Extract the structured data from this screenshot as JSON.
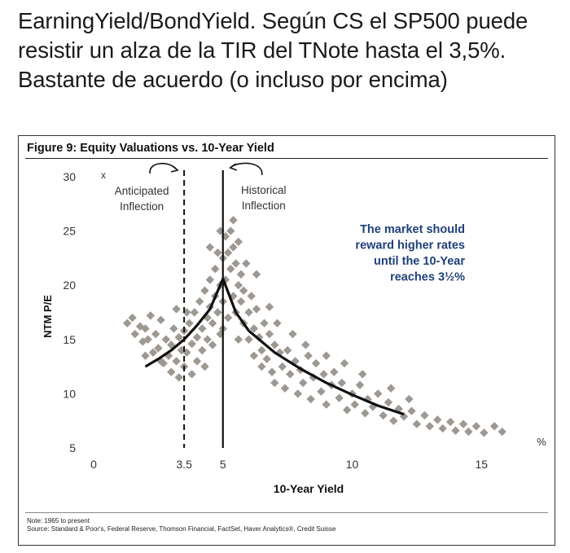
{
  "headline": "EarningYield/BondYield. Según CS el SP500 puede resistir un alza de la TIR del TNote hasta el 3,5%. Bastante de acuerdo (o incluso por encima)",
  "figure": {
    "title": "Figure 9: Equity Valuations vs. 10-Year Yield",
    "note": "Note: 1965 to present",
    "source": "Source: Standard & Poor's, Federal Reserve, Thomson Financial, FactSet, Haver Analytics®, Credit Suisse"
  },
  "chart_data": {
    "type": "scatter",
    "xlabel": "10-Year Yield",
    "ylabel": "NTM P/E",
    "x_unit": "%",
    "y_unit": "x",
    "xlim": [
      0,
      16
    ],
    "ylim": [
      5,
      30
    ],
    "x_ticks": [
      "0",
      "3.5",
      "5",
      "10",
      "15"
    ],
    "x_tick_values": [
      0,
      3.5,
      5,
      10,
      15
    ],
    "y_ticks": [
      "5",
      "10",
      "15",
      "20",
      "25",
      "30"
    ],
    "y_tick_values": [
      5,
      10,
      15,
      20,
      25,
      30
    ],
    "grid": false,
    "point_color": "#9e9893",
    "curve_color": "#111111",
    "vlines": [
      {
        "x": 3.5,
        "style": "dashed",
        "label": "Anticipated\nInflection"
      },
      {
        "x": 5,
        "style": "solid",
        "label": "Historical\nInflection"
      }
    ],
    "annotation": "The market should\nreward higher rates\nuntil the 10-Year\nreaches 3½%",
    "annotation_color": "#1f3f7a",
    "trend_curve": {
      "x": [
        2,
        2.5,
        3,
        3.5,
        4,
        4.5,
        5,
        5.5,
        6,
        7,
        8,
        9,
        10,
        11,
        12
      ],
      "y": [
        12.5,
        13.2,
        14.0,
        15.0,
        16.3,
        17.8,
        20.6,
        17.5,
        15.8,
        13.8,
        12.3,
        11.0,
        9.9,
        8.9,
        8.1
      ]
    },
    "scatter_points": [
      [
        1.3,
        16.5
      ],
      [
        1.5,
        17.0
      ],
      [
        1.6,
        15.5
      ],
      [
        1.8,
        16.2
      ],
      [
        1.9,
        14.8
      ],
      [
        2.0,
        16.0
      ],
      [
        2.1,
        15.0
      ],
      [
        2.2,
        17.2
      ],
      [
        2.3,
        13.8
      ],
      [
        2.4,
        15.5
      ],
      [
        2.5,
        14.2
      ],
      [
        2.6,
        16.8
      ],
      [
        2.7,
        12.8
      ],
      [
        2.8,
        15.0
      ],
      [
        2.9,
        13.5
      ],
      [
        3.0,
        14.5
      ],
      [
        3.0,
        12.0
      ],
      [
        3.1,
        16.0
      ],
      [
        3.2,
        13.0
      ],
      [
        3.3,
        15.2
      ],
      [
        3.4,
        14.0
      ],
      [
        3.5,
        12.5
      ],
      [
        3.5,
        15.8
      ],
      [
        3.6,
        13.8
      ],
      [
        3.7,
        16.5
      ],
      [
        3.8,
        14.6
      ],
      [
        3.8,
        11.8
      ],
      [
        3.9,
        17.5
      ],
      [
        4.0,
        15.2
      ],
      [
        4.0,
        13.0
      ],
      [
        4.1,
        18.5
      ],
      [
        4.2,
        16.0
      ],
      [
        4.2,
        14.0
      ],
      [
        4.3,
        19.5
      ],
      [
        4.4,
        17.0
      ],
      [
        4.4,
        15.0
      ],
      [
        4.5,
        20.5
      ],
      [
        4.5,
        18.0
      ],
      [
        4.6,
        16.5
      ],
      [
        4.6,
        14.5
      ],
      [
        4.7,
        21.5
      ],
      [
        4.7,
        19.0
      ],
      [
        4.8,
        23.0
      ],
      [
        4.8,
        17.5
      ],
      [
        4.9,
        20.0
      ],
      [
        4.9,
        15.5
      ],
      [
        5.0,
        22.5
      ],
      [
        5.0,
        18.5
      ],
      [
        5.0,
        16.0
      ],
      [
        5.1,
        24.5
      ],
      [
        5.1,
        20.5
      ],
      [
        5.2,
        23.0
      ],
      [
        5.2,
        17.0
      ],
      [
        5.3,
        25.0
      ],
      [
        5.3,
        21.5
      ],
      [
        5.4,
        19.0
      ],
      [
        5.4,
        23.5
      ],
      [
        5.5,
        22.0
      ],
      [
        5.5,
        17.5
      ],
      [
        5.6,
        20.0
      ],
      [
        5.6,
        24.0
      ],
      [
        5.7,
        18.5
      ],
      [
        5.7,
        21.0
      ],
      [
        5.8,
        16.5
      ],
      [
        5.8,
        19.5
      ],
      [
        5.9,
        22.0
      ],
      [
        6.0,
        17.5
      ],
      [
        6.0,
        15.0
      ],
      [
        6.1,
        19.0
      ],
      [
        6.2,
        16.0
      ],
      [
        6.2,
        13.5
      ],
      [
        6.3,
        17.8
      ],
      [
        6.4,
        15.2
      ],
      [
        6.5,
        14.0
      ],
      [
        6.5,
        12.5
      ],
      [
        6.6,
        16.5
      ],
      [
        6.7,
        13.2
      ],
      [
        6.8,
        15.5
      ],
      [
        6.9,
        12.0
      ],
      [
        7.0,
        14.5
      ],
      [
        7.0,
        11.0
      ],
      [
        7.2,
        13.8
      ],
      [
        7.3,
        12.5
      ],
      [
        7.4,
        10.5
      ],
      [
        7.5,
        14.0
      ],
      [
        7.6,
        11.8
      ],
      [
        7.8,
        13.0
      ],
      [
        7.9,
        10.0
      ],
      [
        8.0,
        12.2
      ],
      [
        8.1,
        11.0
      ],
      [
        8.3,
        13.5
      ],
      [
        8.4,
        9.5
      ],
      [
        8.5,
        11.5
      ],
      [
        8.6,
        12.8
      ],
      [
        8.8,
        10.2
      ],
      [
        8.9,
        11.8
      ],
      [
        9.0,
        9.0
      ],
      [
        9.2,
        10.8
      ],
      [
        9.3,
        12.0
      ],
      [
        9.5,
        9.6
      ],
      [
        9.6,
        11.0
      ],
      [
        9.8,
        8.5
      ],
      [
        10.0,
        10.0
      ],
      [
        10.1,
        9.0
      ],
      [
        10.3,
        10.8
      ],
      [
        10.5,
        8.2
      ],
      [
        10.6,
        9.5
      ],
      [
        10.8,
        8.8
      ],
      [
        11.0,
        10.0
      ],
      [
        11.2,
        8.0
      ],
      [
        11.4,
        9.2
      ],
      [
        11.6,
        7.5
      ],
      [
        11.8,
        8.6
      ],
      [
        12.0,
        7.9
      ],
      [
        12.3,
        8.4
      ],
      [
        12.5,
        7.2
      ],
      [
        12.8,
        8.0
      ],
      [
        13.0,
        7.0
      ],
      [
        13.3,
        7.6
      ],
      [
        13.5,
        6.8
      ],
      [
        13.8,
        7.4
      ],
      [
        14.0,
        6.6
      ],
      [
        14.3,
        7.2
      ],
      [
        14.5,
        6.5
      ],
      [
        14.8,
        7.0
      ],
      [
        15.1,
        6.4
      ],
      [
        15.5,
        7.0
      ],
      [
        15.8,
        6.5
      ],
      [
        2.0,
        13.5
      ],
      [
        2.6,
        13.0
      ],
      [
        3.3,
        11.5
      ],
      [
        3.6,
        17.5
      ],
      [
        4.3,
        12.5
      ],
      [
        5.6,
        15.0
      ],
      [
        6.8,
        18.0
      ],
      [
        7.1,
        16.5
      ],
      [
        7.7,
        15.5
      ],
      [
        8.2,
        14.5
      ],
      [
        9.0,
        13.5
      ],
      [
        9.7,
        12.8
      ],
      [
        10.4,
        11.8
      ],
      [
        11.5,
        10.5
      ],
      [
        12.2,
        9.5
      ],
      [
        4.9,
        25.0
      ],
      [
        5.4,
        26.0
      ],
      [
        4.5,
        23.5
      ],
      [
        6.3,
        21.0
      ],
      [
        3.2,
        17.8
      ]
    ]
  }
}
